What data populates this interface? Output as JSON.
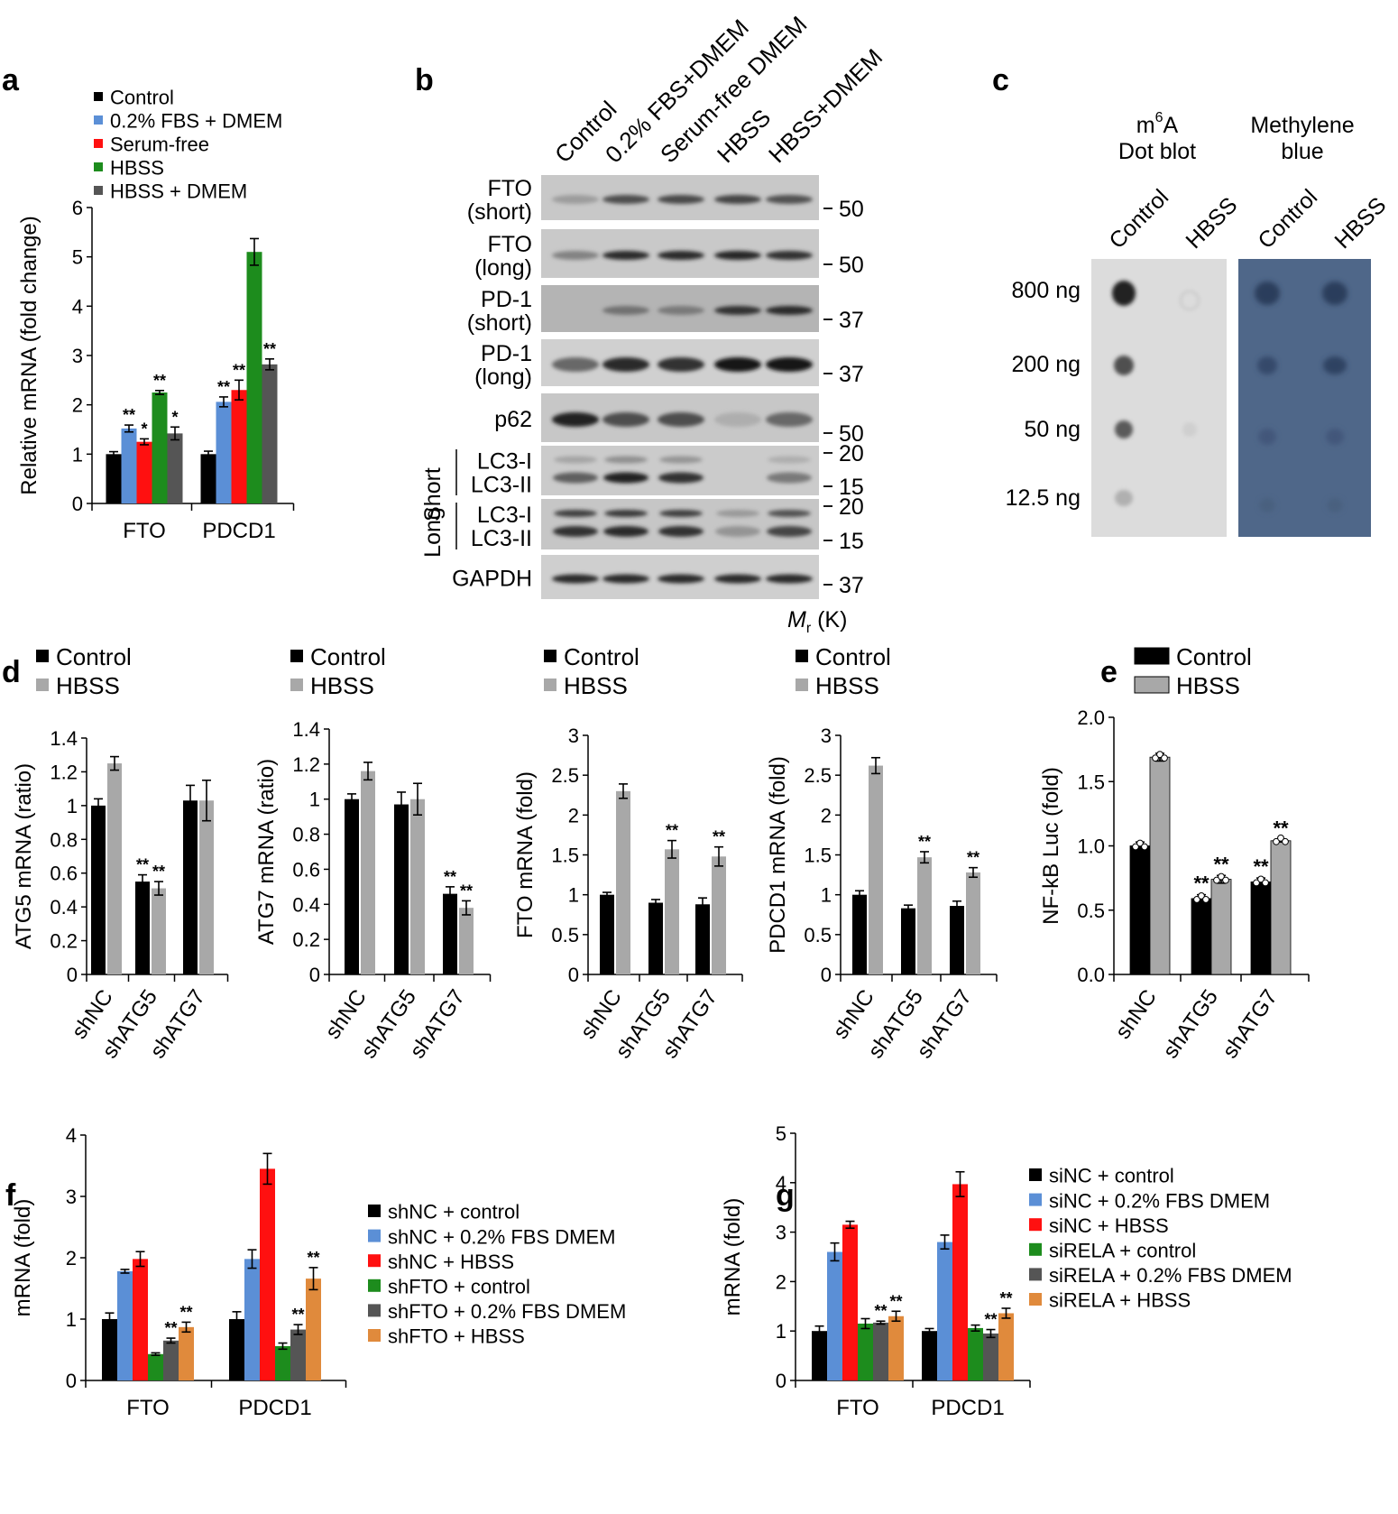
{
  "colors": {
    "black": "#000000",
    "blue": "#5b8fd6",
    "red": "#ff1010",
    "green": "#1d8c1d",
    "darkgray": "#555555",
    "lightgray": "#a8a8a8",
    "orange": "#e08a3c"
  },
  "panel_labels": {
    "a": "a",
    "b": "b",
    "c": "c",
    "d": "d",
    "e": "e",
    "f": "f",
    "g": "g"
  },
  "chart_data": [
    {
      "id": "a",
      "type": "bar",
      "ylabel": "Relative mRNA (fold change)",
      "ylim": [
        0,
        6
      ],
      "yticks": [
        "0",
        "1",
        "2",
        "3",
        "4",
        "5",
        "6"
      ],
      "categories": [
        "FTO",
        "PDCD1"
      ],
      "legend": "top-left",
      "series": [
        {
          "name": "Control",
          "color": "#000000",
          "values": [
            1.0,
            1.0
          ],
          "err": [
            0.05,
            0.06
          ],
          "sig": [
            "",
            ""
          ]
        },
        {
          "name": "0.2% FBS + DMEM",
          "color": "#5b8fd6",
          "values": [
            1.52,
            2.06
          ],
          "err": [
            0.07,
            0.1
          ],
          "sig": [
            "**",
            "**"
          ]
        },
        {
          "name": "Serum-free",
          "color": "#ff1010",
          "values": [
            1.25,
            2.3
          ],
          "err": [
            0.06,
            0.2
          ],
          "sig": [
            "*",
            "**"
          ]
        },
        {
          "name": "HBSS",
          "color": "#1d8c1d",
          "values": [
            2.25,
            5.1
          ],
          "err": [
            0.04,
            0.27
          ],
          "sig": [
            "**",
            ""
          ]
        },
        {
          "name": "HBSS + DMEM",
          "color": "#555555",
          "values": [
            1.42,
            2.82
          ],
          "err": [
            0.13,
            0.11
          ],
          "sig": [
            "*",
            "**"
          ]
        }
      ]
    },
    {
      "id": "d1",
      "type": "bar",
      "ylabel": "ATG5 mRNA (ratio)",
      "ylim": [
        0,
        1.4
      ],
      "yticks": [
        "0",
        "0.2",
        "0.4",
        "0.6",
        "0.8",
        "1",
        "1.2",
        "1.4"
      ],
      "categories": [
        "shNC",
        "shATG5",
        "shATG7"
      ],
      "series": [
        {
          "name": "Control",
          "color": "#000000",
          "values": [
            1.0,
            0.55,
            1.03
          ],
          "err": [
            0.04,
            0.04,
            0.09
          ],
          "sig": [
            "",
            "**",
            ""
          ]
        },
        {
          "name": "HBSS",
          "color": "#a8a8a8",
          "values": [
            1.25,
            0.51,
            1.03
          ],
          "err": [
            0.04,
            0.04,
            0.12
          ],
          "sig": [
            "",
            "**",
            ""
          ]
        }
      ]
    },
    {
      "id": "d2",
      "type": "bar",
      "ylabel": "ATG7 mRNA (ratio)",
      "ylim": [
        0,
        1.4
      ],
      "yticks": [
        "0",
        "0.2",
        "0.4",
        "0.6",
        "0.8",
        "1",
        "1.2",
        "1.4"
      ],
      "categories": [
        "shNC",
        "shATG5",
        "shATG7"
      ],
      "series": [
        {
          "name": "Control",
          "color": "#000000",
          "values": [
            1.0,
            0.97,
            0.46
          ],
          "err": [
            0.03,
            0.07,
            0.04
          ],
          "sig": [
            "",
            "",
            "**"
          ]
        },
        {
          "name": "HBSS",
          "color": "#a8a8a8",
          "values": [
            1.16,
            1.0,
            0.38
          ],
          "err": [
            0.05,
            0.09,
            0.04
          ],
          "sig": [
            "",
            "",
            "**"
          ]
        }
      ]
    },
    {
      "id": "d3",
      "type": "bar",
      "ylabel": "FTO mRNA (fold)",
      "ylim": [
        0,
        3
      ],
      "yticks": [
        "0",
        "0.5",
        "1",
        "1.5",
        "2",
        "2.5",
        "3"
      ],
      "categories": [
        "shNC",
        "shATG5",
        "shATG7"
      ],
      "series": [
        {
          "name": "Control",
          "color": "#000000",
          "values": [
            1.0,
            0.9,
            0.88
          ],
          "err": [
            0.03,
            0.04,
            0.08
          ],
          "sig": [
            "",
            "",
            ""
          ]
        },
        {
          "name": "HBSS",
          "color": "#a8a8a8",
          "values": [
            2.3,
            1.57,
            1.48
          ],
          "err": [
            0.09,
            0.11,
            0.12
          ],
          "sig": [
            "",
            "**",
            "**"
          ]
        }
      ]
    },
    {
      "id": "d4",
      "type": "bar",
      "ylabel": "PDCD1 mRNA (fold)",
      "ylim": [
        0,
        3
      ],
      "yticks": [
        "0",
        "0.5",
        "1",
        "1.5",
        "2",
        "2.5",
        "3"
      ],
      "categories": [
        "shNC",
        "shATG5",
        "shATG7"
      ],
      "series": [
        {
          "name": "Control",
          "color": "#000000",
          "values": [
            1.0,
            0.83,
            0.86
          ],
          "err": [
            0.05,
            0.04,
            0.06
          ],
          "sig": [
            "",
            "",
            ""
          ]
        },
        {
          "name": "HBSS",
          "color": "#a8a8a8",
          "values": [
            2.62,
            1.47,
            1.28
          ],
          "err": [
            0.1,
            0.07,
            0.06
          ],
          "sig": [
            "",
            "**",
            "**"
          ]
        }
      ]
    },
    {
      "id": "e",
      "type": "bar",
      "ylabel": "NF-kB Luc (fold)",
      "ylim": [
        0,
        2.0
      ],
      "yticks": [
        "0.0",
        "0.5",
        "1.0",
        "1.5",
        "2.0"
      ],
      "categories": [
        "shNC",
        "shATG5",
        "shATG7"
      ],
      "series": [
        {
          "name": "Control",
          "color": "#000000",
          "values": [
            1.0,
            0.59,
            0.72
          ],
          "err": [
            0.03,
            0.03,
            0.03
          ],
          "sig": [
            "",
            "**",
            "**"
          ]
        },
        {
          "name": "HBSS",
          "color": "#a8a8a8",
          "values": [
            1.69,
            0.74,
            1.04
          ],
          "err": [
            0.03,
            0.03,
            0.01
          ],
          "sig": [
            "",
            "**",
            "**"
          ]
        }
      ]
    },
    {
      "id": "f",
      "type": "bar",
      "ylabel": "mRNA (fold)",
      "ylim": [
        0,
        4
      ],
      "yticks": [
        "0",
        "1",
        "2",
        "3",
        "4"
      ],
      "categories": [
        "FTO",
        "PDCD1"
      ],
      "legend": "right",
      "series": [
        {
          "name": "shNC + control",
          "color": "#000000",
          "values": [
            1.0,
            1.0
          ],
          "err": [
            0.1,
            0.12
          ],
          "sig": [
            "",
            ""
          ]
        },
        {
          "name": "shNC + 0.2% FBS DMEM",
          "color": "#5b8fd6",
          "values": [
            1.78,
            1.98
          ],
          "err": [
            0.03,
            0.15
          ],
          "sig": [
            "",
            ""
          ]
        },
        {
          "name": "shNC + HBSS",
          "color": "#ff1010",
          "values": [
            1.98,
            3.45
          ],
          "err": [
            0.12,
            0.25
          ],
          "sig": [
            "",
            ""
          ]
        },
        {
          "name": "shFTO + control",
          "color": "#1d8c1d",
          "values": [
            0.43,
            0.56
          ],
          "err": [
            0.02,
            0.05
          ],
          "sig": [
            "",
            ""
          ]
        },
        {
          "name": "shFTO + 0.2% FBS DMEM",
          "color": "#555555",
          "values": [
            0.65,
            0.83
          ],
          "err": [
            0.04,
            0.08
          ],
          "sig": [
            "**",
            "**"
          ]
        },
        {
          "name": "shFTO + HBSS",
          "color": "#e08a3c",
          "values": [
            0.87,
            1.66
          ],
          "err": [
            0.08,
            0.18
          ],
          "sig": [
            "**",
            "**"
          ]
        }
      ]
    },
    {
      "id": "g",
      "type": "bar",
      "ylabel": "mRNA (fold)",
      "ylim": [
        0,
        5
      ],
      "yticks": [
        "0",
        "1",
        "2",
        "3",
        "4",
        "5"
      ],
      "categories": [
        "FTO",
        "PDCD1"
      ],
      "legend": "right",
      "series": [
        {
          "name": "siNC + control",
          "color": "#000000",
          "values": [
            1.0,
            1.0
          ],
          "err": [
            0.1,
            0.05
          ],
          "sig": [
            "",
            ""
          ]
        },
        {
          "name": "siNC + 0.2% FBS DMEM",
          "color": "#5b8fd6",
          "values": [
            2.6,
            2.8
          ],
          "err": [
            0.18,
            0.14
          ],
          "sig": [
            "",
            ""
          ]
        },
        {
          "name": "siNC + HBSS",
          "color": "#ff1010",
          "values": [
            3.15,
            3.97
          ],
          "err": [
            0.07,
            0.25
          ],
          "sig": [
            "",
            ""
          ]
        },
        {
          "name": "siRELA + control",
          "color": "#1d8c1d",
          "values": [
            1.15,
            1.06
          ],
          "err": [
            0.1,
            0.06
          ],
          "sig": [
            "",
            ""
          ]
        },
        {
          "name": "siRELA + 0.2% FBS DMEM",
          "color": "#555555",
          "values": [
            1.17,
            0.95
          ],
          "err": [
            0.03,
            0.08
          ],
          "sig": [
            "**",
            "**"
          ]
        },
        {
          "name": "siRELA + HBSS",
          "color": "#e08a3c",
          "values": [
            1.3,
            1.36
          ],
          "err": [
            0.1,
            0.1
          ],
          "sig": [
            "**",
            "**"
          ]
        }
      ]
    }
  ],
  "western_blot": {
    "lanes": [
      "Control",
      "0.2% FBS+DMEM",
      "Serum-free DMEM",
      "HBSS",
      "HBSS+DMEM"
    ],
    "rows": [
      {
        "label1": "FTO",
        "label2": "(short)",
        "marker": "50"
      },
      {
        "label1": "FTO",
        "label2": "(long)",
        "marker": "50"
      },
      {
        "label1": "PD-1",
        "label2": "(short)",
        "marker": "37"
      },
      {
        "label1": "PD-1",
        "label2": "(long)",
        "marker": "37"
      },
      {
        "label1": "p62",
        "label2": "",
        "marker": "50"
      },
      {
        "label1": "LC3-I",
        "label2": "LC3-II",
        "marker": "20",
        "marker2": "15"
      },
      {
        "label1": "LC3-I",
        "label2": "LC3-II",
        "marker": "20",
        "marker2": "15"
      },
      {
        "label1": "GAPDH",
        "label2": "",
        "marker": "37"
      }
    ],
    "exposure_labels": [
      "Short",
      "Long"
    ],
    "mr_label": "M",
    "mr_sub": "r",
    "mr_unit": " (K)"
  },
  "dot_blot": {
    "title1_pre": "m",
    "title1_sup": "6",
    "title1_post": "A",
    "title2": "Dot blot",
    "title3": "Methylene",
    "title4": "blue",
    "columns": [
      "Control",
      "HBSS",
      "Control",
      "HBSS"
    ],
    "amounts": [
      "800 ng",
      "200 ng",
      "50 ng",
      "12.5 ng"
    ]
  }
}
